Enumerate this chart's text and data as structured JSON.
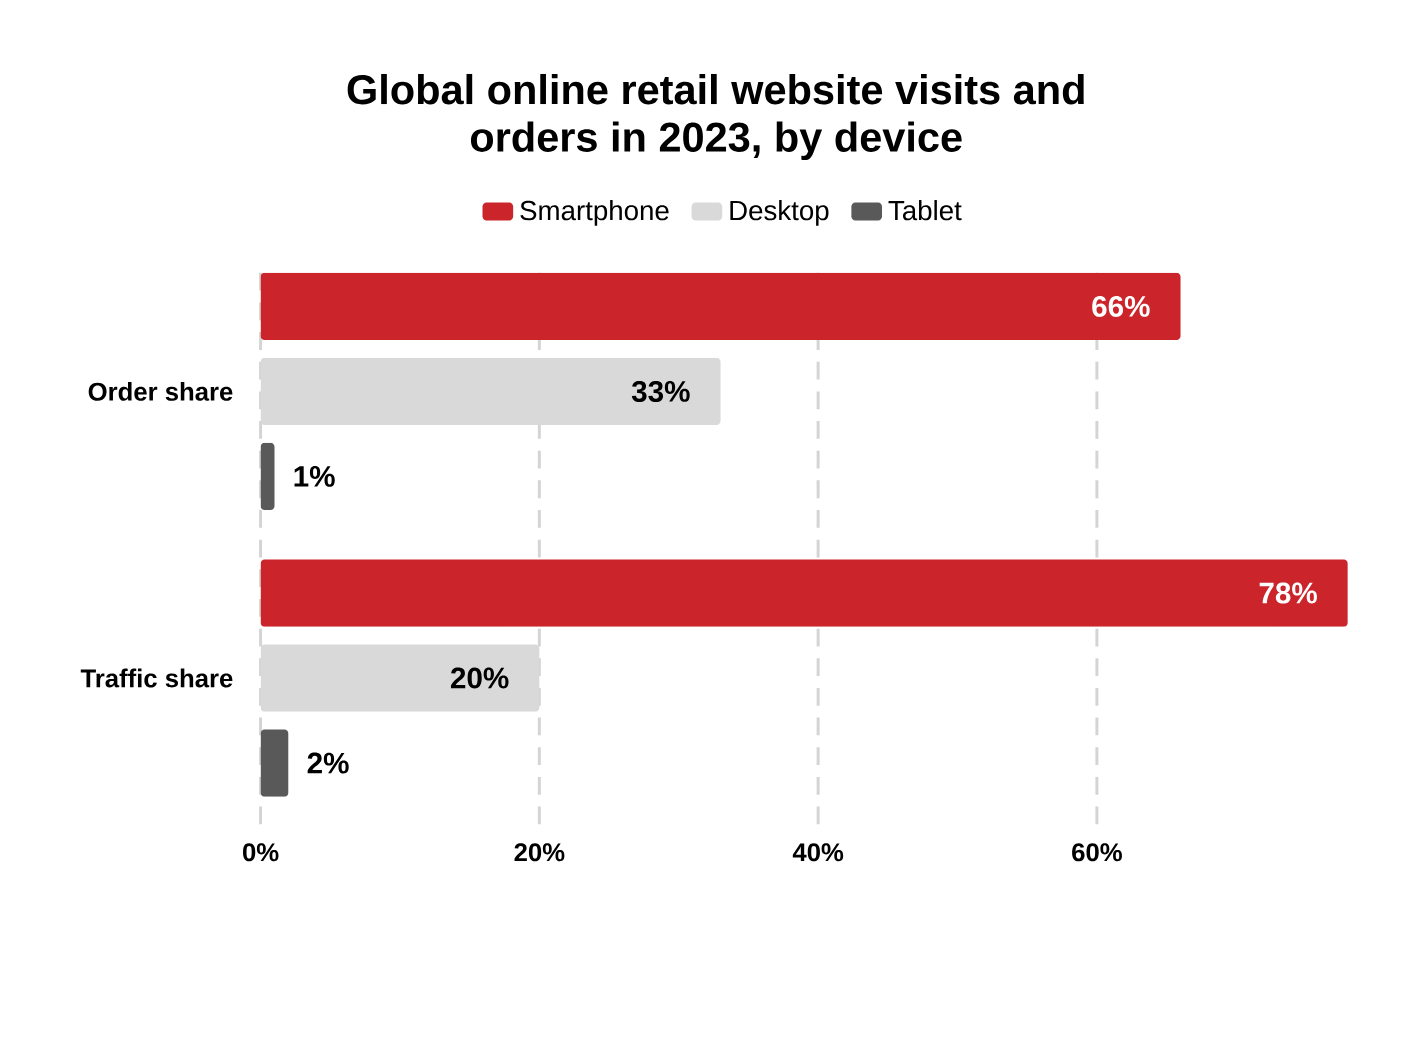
{
  "chart_data": {
    "type": "bar",
    "orientation": "horizontal",
    "title": "Global online retail website visits and orders in 2023, by device",
    "categories": [
      "Order share",
      "Traffic share"
    ],
    "series": [
      {
        "name": "Smartphone",
        "color": "#cb242a",
        "values": [
          66,
          78
        ],
        "value_labels": [
          "66%",
          "78%"
        ]
      },
      {
        "name": "Desktop",
        "color": "#d9d9d9",
        "values": [
          33,
          20
        ],
        "value_labels": [
          "33%",
          "20%"
        ]
      },
      {
        "name": "Tablet",
        "color": "#595959",
        "values": [
          1,
          2
        ],
        "value_labels": [
          "1%",
          "2%"
        ]
      }
    ],
    "xlim": [
      0,
      78
    ],
    "xticks": [
      {
        "value": 0,
        "label": "0%"
      },
      {
        "value": 20,
        "label": "20%"
      },
      {
        "value": 40,
        "label": "40%"
      },
      {
        "value": 60,
        "label": "60%"
      }
    ],
    "grid": "x",
    "legend": "top"
  }
}
